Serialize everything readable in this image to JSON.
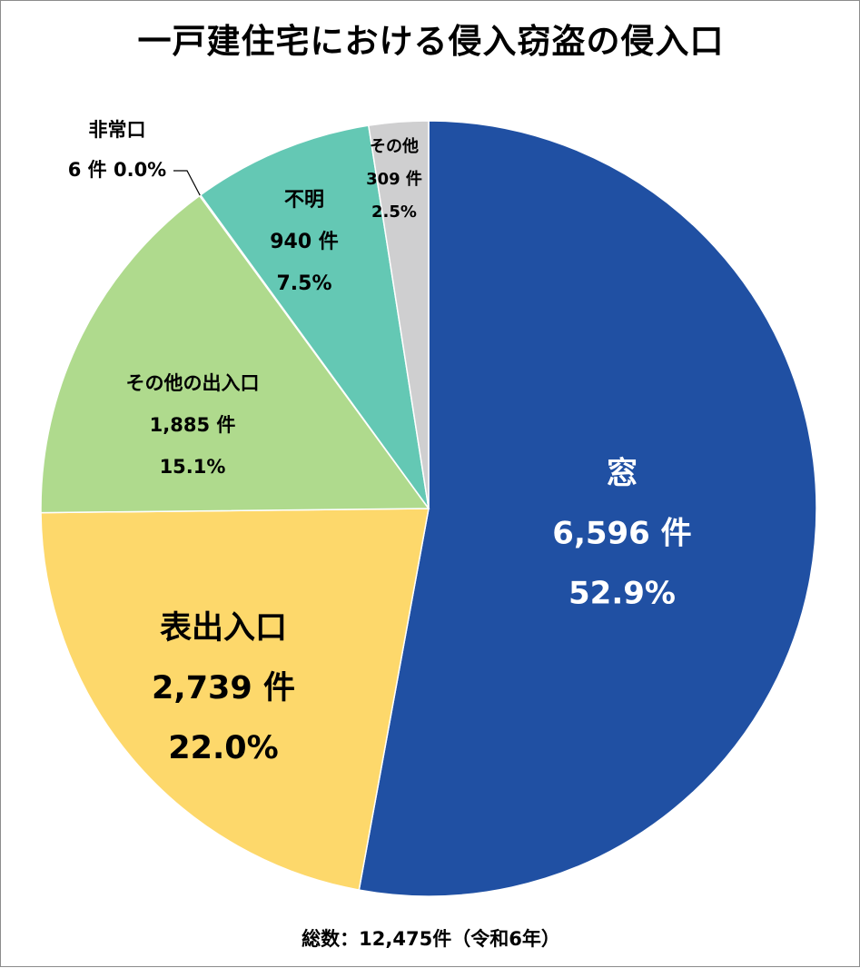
{
  "chart_data": {
    "type": "pie",
    "title": "一戸建住宅における侵入窃盗の侵入口",
    "footnote": "総数：12,475件（令和6年）",
    "start_angle_deg": 0,
    "direction": "clockwise",
    "slices": [
      {
        "name": "窓",
        "value": 6596,
        "count_label": "6,596 件",
        "percent_label": "52.9%",
        "color": "#2050A3",
        "text_color": "#ffffff"
      },
      {
        "name": "表出入口",
        "value": 2739,
        "count_label": "2,739 件",
        "percent_label": "22.0%",
        "color": "#FDD86B",
        "text_color": "#000000"
      },
      {
        "name": "その他の出入口",
        "value": 1885,
        "count_label": "1,885 件",
        "percent_label": "15.1%",
        "color": "#AFDA8D",
        "text_color": "#000000"
      },
      {
        "name": "非常口",
        "value": 6,
        "count_label": "6 件",
        "percent_label": "0.0%",
        "color": "#4CAF50",
        "text_color": "#000000",
        "inline_label": "6 件 0.0%"
      },
      {
        "name": "不明",
        "value": 940,
        "count_label": "940 件",
        "percent_label": "7.5%",
        "color": "#64C8B4",
        "text_color": "#000000"
      },
      {
        "name": "その他",
        "value": 309,
        "count_label": "309 件",
        "percent_label": "2.5%",
        "color": "#CFCFD0",
        "text_color": "#000000"
      }
    ]
  }
}
